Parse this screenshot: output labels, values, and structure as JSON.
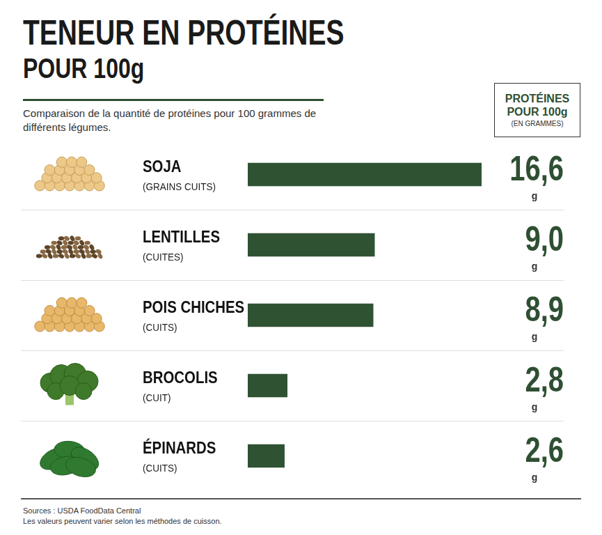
{
  "header": {
    "title_lines": [
      "TENEUR EN PROTÉINES",
      "POUR 100g"
    ],
    "subtitle": "Comparaison de la quantité de protéines pour 100 grammes de différents légumes.",
    "value_header": "PROTÉINES POUR 100g",
    "value_header_note": "(EN GRAMMES)"
  },
  "chart_data": {
    "type": "bar",
    "orientation": "horizontal",
    "categories": [
      "SOJA",
      "LENTILLES",
      "POIS CHICHES",
      "BROCOLIS",
      "ÉPINARDS"
    ],
    "category_notes": [
      "(GRAINS CUITS)",
      "(CUITES)",
      "(CUITS)",
      "(CUIT)",
      "(CUITS)"
    ],
    "values": [
      16.6,
      9.0,
      8.9,
      2.8,
      2.6
    ],
    "value_labels": [
      "16,6",
      "9,0",
      "8,9",
      "2,8",
      "2,6"
    ],
    "value_unit": "g",
    "color": "#2f5233",
    "xlim": [
      0,
      16.6
    ],
    "grid": false,
    "tick_labels": false,
    "data_labels": true
  },
  "footer": {
    "lines": [
      "Sources : USDA FoodData Central",
      "Les valeurs peuvent varier selon les méthodes de cuisson."
    ]
  }
}
